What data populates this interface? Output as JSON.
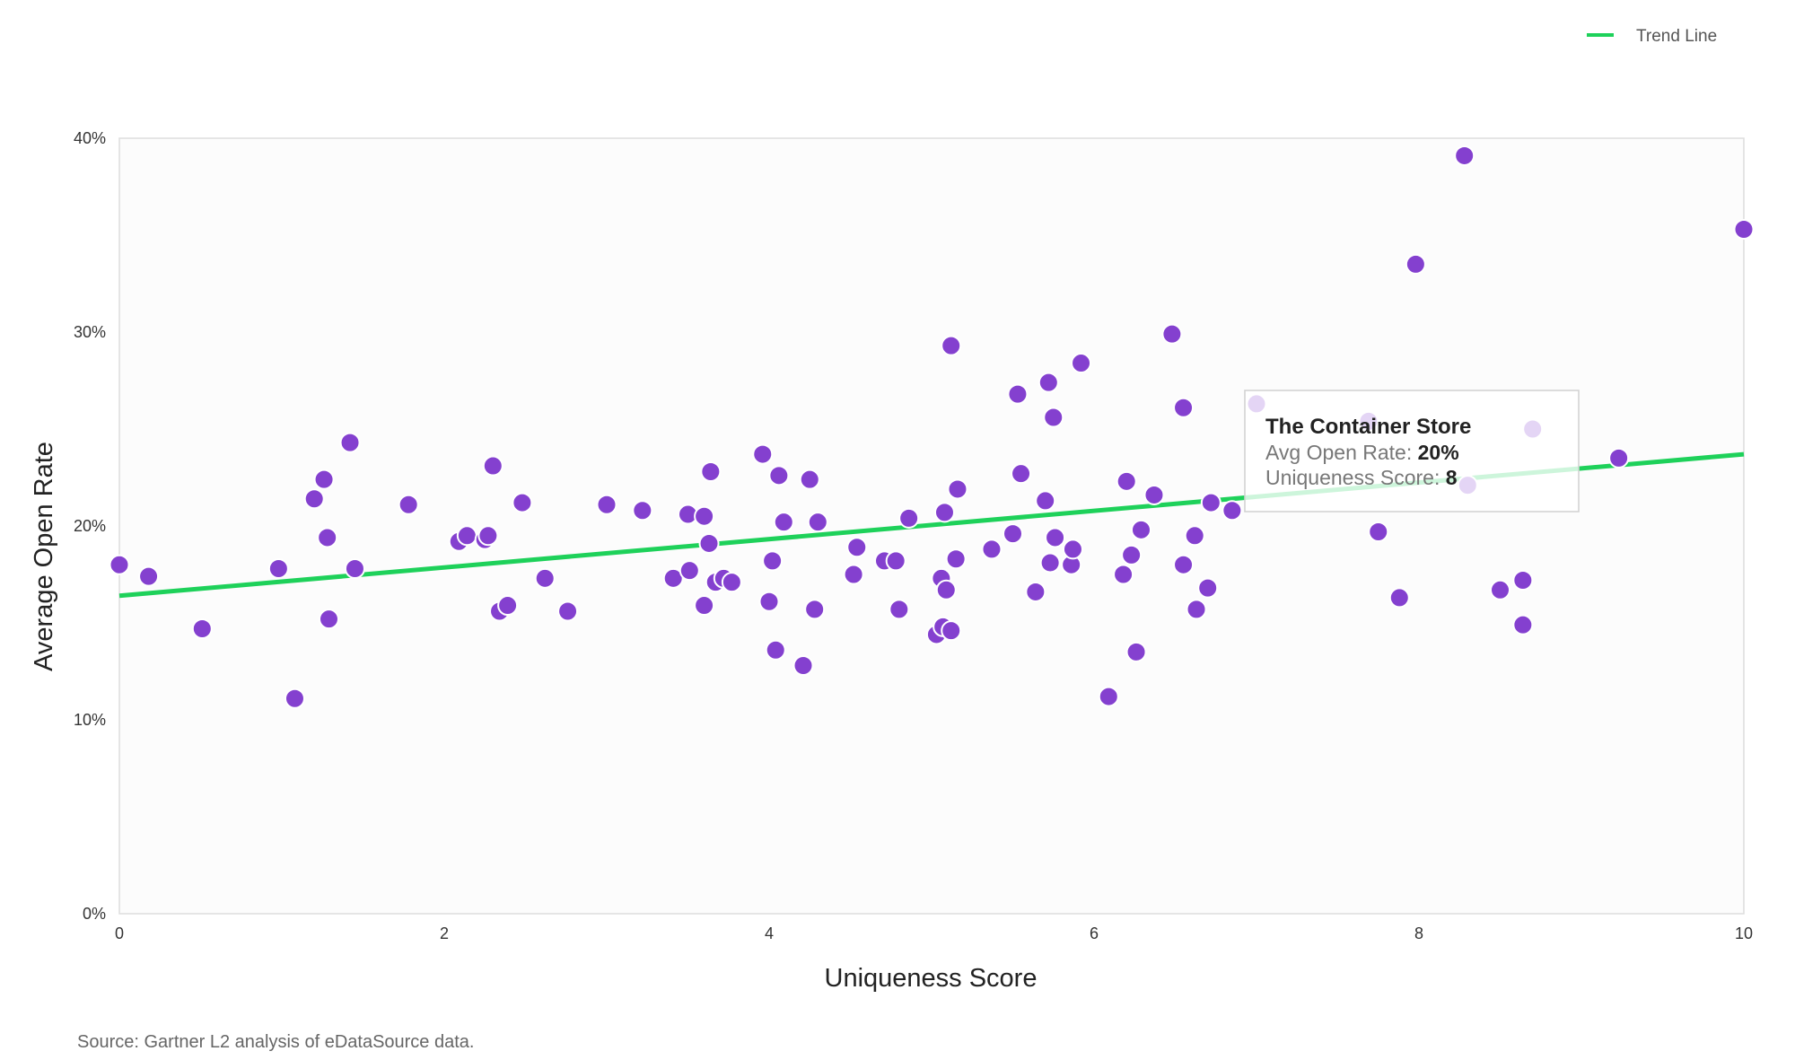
{
  "colors": {
    "point": "#8440cf",
    "trend": "#1ed15a",
    "plot_bg": "#fcfcfc",
    "axis": "#dddddd"
  },
  "source": "Source: Gartner L2 analysis of eDataSource data.",
  "tooltip": {
    "title": "The Container Store",
    "open_rate_label": "Avg Open Rate: ",
    "open_rate_value": "20%",
    "score_label": "Uniqueness Score: ",
    "score_value": "8"
  },
  "chart_data": {
    "type": "scatter",
    "title": "",
    "xlabel": "Uniqueness Score",
    "ylabel": "Average Open Rate",
    "xlim": [
      0,
      10
    ],
    "ylim": [
      0,
      40
    ],
    "x_ticks": [
      0,
      2,
      4,
      6,
      8,
      10
    ],
    "x_tick_labels": [
      "0",
      "2",
      "4",
      "6",
      "8",
      "10"
    ],
    "y_ticks": [
      0,
      10,
      20,
      30,
      40
    ],
    "y_tick_labels": [
      "0%",
      "10%",
      "20%",
      "30%",
      "40%"
    ],
    "legend": {
      "position": "top-right",
      "entries": [
        "Trend Line"
      ]
    },
    "grid": false,
    "trend_line": {
      "name": "Trend Line",
      "x": [
        0,
        10
      ],
      "y": [
        16.4,
        23.7
      ]
    },
    "points": [
      {
        "x": 0.0,
        "y": 18.0
      },
      {
        "x": 0.18,
        "y": 17.4
      },
      {
        "x": 0.51,
        "y": 14.7
      },
      {
        "x": 0.98,
        "y": 17.8
      },
      {
        "x": 1.08,
        "y": 11.1
      },
      {
        "x": 1.2,
        "y": 21.4
      },
      {
        "x": 1.26,
        "y": 22.4
      },
      {
        "x": 1.28,
        "y": 19.4
      },
      {
        "x": 1.29,
        "y": 15.2
      },
      {
        "x": 1.42,
        "y": 24.3
      },
      {
        "x": 1.45,
        "y": 17.8
      },
      {
        "x": 1.78,
        "y": 21.1
      },
      {
        "x": 2.09,
        "y": 19.2
      },
      {
        "x": 2.14,
        "y": 19.5
      },
      {
        "x": 2.25,
        "y": 19.3
      },
      {
        "x": 2.27,
        "y": 19.5
      },
      {
        "x": 2.3,
        "y": 23.1
      },
      {
        "x": 2.34,
        "y": 15.6
      },
      {
        "x": 2.39,
        "y": 15.9
      },
      {
        "x": 2.48,
        "y": 21.2
      },
      {
        "x": 2.62,
        "y": 17.3
      },
      {
        "x": 2.76,
        "y": 15.6
      },
      {
        "x": 3.0,
        "y": 21.1
      },
      {
        "x": 3.22,
        "y": 20.8
      },
      {
        "x": 3.41,
        "y": 17.3
      },
      {
        "x": 3.5,
        "y": 20.6
      },
      {
        "x": 3.51,
        "y": 17.7
      },
      {
        "x": 3.6,
        "y": 15.9
      },
      {
        "x": 3.6,
        "y": 20.5
      },
      {
        "x": 3.63,
        "y": 19.1
      },
      {
        "x": 3.64,
        "y": 22.8
      },
      {
        "x": 3.67,
        "y": 17.1
      },
      {
        "x": 3.72,
        "y": 17.3
      },
      {
        "x": 3.77,
        "y": 17.1
      },
      {
        "x": 3.96,
        "y": 23.7
      },
      {
        "x": 4.0,
        "y": 16.1
      },
      {
        "x": 4.02,
        "y": 18.2
      },
      {
        "x": 4.04,
        "y": 13.6
      },
      {
        "x": 4.06,
        "y": 22.6
      },
      {
        "x": 4.09,
        "y": 20.2
      },
      {
        "x": 4.21,
        "y": 12.8
      },
      {
        "x": 4.25,
        "y": 22.4
      },
      {
        "x": 4.28,
        "y": 15.7
      },
      {
        "x": 4.3,
        "y": 20.2
      },
      {
        "x": 4.52,
        "y": 17.5
      },
      {
        "x": 4.54,
        "y": 18.9
      },
      {
        "x": 4.71,
        "y": 18.2
      },
      {
        "x": 4.78,
        "y": 18.2
      },
      {
        "x": 4.8,
        "y": 15.7
      },
      {
        "x": 4.86,
        "y": 20.4
      },
      {
        "x": 5.03,
        "y": 14.4
      },
      {
        "x": 5.06,
        "y": 17.3
      },
      {
        "x": 5.07,
        "y": 14.8
      },
      {
        "x": 5.08,
        "y": 20.7
      },
      {
        "x": 5.09,
        "y": 16.7
      },
      {
        "x": 5.12,
        "y": 14.6
      },
      {
        "x": 5.12,
        "y": 29.3
      },
      {
        "x": 5.15,
        "y": 18.3
      },
      {
        "x": 5.16,
        "y": 21.9
      },
      {
        "x": 5.37,
        "y": 18.8
      },
      {
        "x": 5.5,
        "y": 19.6
      },
      {
        "x": 5.53,
        "y": 26.8
      },
      {
        "x": 5.55,
        "y": 22.7
      },
      {
        "x": 5.64,
        "y": 16.6
      },
      {
        "x": 5.7,
        "y": 21.3
      },
      {
        "x": 5.72,
        "y": 27.4
      },
      {
        "x": 5.73,
        "y": 18.1
      },
      {
        "x": 5.75,
        "y": 25.6
      },
      {
        "x": 5.76,
        "y": 19.4
      },
      {
        "x": 5.86,
        "y": 18.0
      },
      {
        "x": 5.87,
        "y": 18.8
      },
      {
        "x": 5.92,
        "y": 28.4
      },
      {
        "x": 6.09,
        "y": 11.2
      },
      {
        "x": 6.18,
        "y": 17.5
      },
      {
        "x": 6.2,
        "y": 22.3
      },
      {
        "x": 6.23,
        "y": 18.5
      },
      {
        "x": 6.26,
        "y": 13.5
      },
      {
        "x": 6.29,
        "y": 19.8
      },
      {
        "x": 6.37,
        "y": 21.6
      },
      {
        "x": 6.48,
        "y": 29.9
      },
      {
        "x": 6.55,
        "y": 18.0
      },
      {
        "x": 6.55,
        "y": 26.1
      },
      {
        "x": 6.62,
        "y": 19.5
      },
      {
        "x": 6.63,
        "y": 15.7
      },
      {
        "x": 6.7,
        "y": 16.8
      },
      {
        "x": 6.72,
        "y": 21.2
      },
      {
        "x": 6.85,
        "y": 20.8
      },
      {
        "x": 7.69,
        "y": 25.4
      },
      {
        "x": 7.75,
        "y": 19.7
      },
      {
        "x": 7.88,
        "y": 16.3
      },
      {
        "x": 7.98,
        "y": 33.5
      },
      {
        "x": 8.28,
        "y": 39.1
      },
      {
        "x": 8.5,
        "y": 16.7
      },
      {
        "x": 8.64,
        "y": 17.2
      },
      {
        "x": 8.64,
        "y": 14.9
      },
      {
        "x": 9.23,
        "y": 23.5
      },
      {
        "x": 10.0,
        "y": 35.3
      },
      {
        "x": 7.0,
        "y": 26.3
      },
      {
        "x": 8.3,
        "y": 22.1
      },
      {
        "x": 8.7,
        "y": 25.0
      }
    ]
  }
}
